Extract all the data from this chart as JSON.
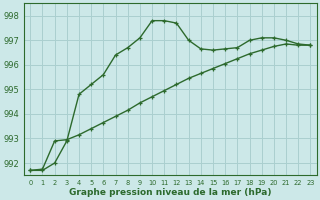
{
  "line1_x": [
    0,
    1,
    2,
    3,
    4,
    5,
    6,
    7,
    8,
    9,
    10,
    11,
    12,
    13,
    14,
    15,
    16,
    17,
    18,
    19,
    20,
    21,
    22,
    23
  ],
  "line1_y": [
    991.7,
    991.7,
    992.0,
    992.9,
    994.8,
    995.2,
    995.6,
    996.4,
    996.7,
    997.1,
    997.8,
    997.8,
    997.7,
    997.0,
    996.65,
    996.6,
    996.65,
    996.7,
    997.0,
    997.1,
    997.1,
    997.0,
    996.85,
    996.8
  ],
  "line2_x": [
    0,
    1,
    2,
    3,
    4,
    5,
    6,
    7,
    8,
    9,
    10,
    11,
    12,
    13,
    14,
    15,
    16,
    17,
    18,
    19,
    20,
    21,
    22,
    23
  ],
  "line2_y": [
    991.7,
    991.75,
    992.9,
    992.95,
    993.15,
    993.4,
    993.65,
    993.9,
    994.15,
    994.45,
    994.7,
    994.95,
    995.2,
    995.45,
    995.65,
    995.85,
    996.05,
    996.25,
    996.45,
    996.6,
    996.75,
    996.85,
    996.8,
    996.8
  ],
  "line_color": "#2d6a2d",
  "bg_color": "#cce8e8",
  "grid_color": "#aacfcf",
  "xlabel": "Graphe pression niveau de la mer (hPa)",
  "ylim": [
    991.5,
    998.5
  ],
  "xlim": [
    -0.5,
    23.5
  ],
  "yticks": [
    992,
    993,
    994,
    995,
    996,
    997,
    998
  ],
  "xticks": [
    0,
    1,
    2,
    3,
    4,
    5,
    6,
    7,
    8,
    9,
    10,
    11,
    12,
    13,
    14,
    15,
    16,
    17,
    18,
    19,
    20,
    21,
    22,
    23
  ],
  "marker": "+"
}
